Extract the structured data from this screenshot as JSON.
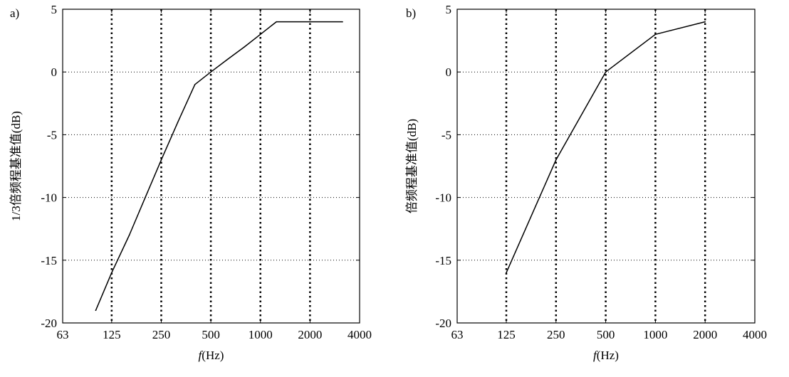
{
  "chart_data": [
    {
      "panel_label": "a)",
      "type": "line",
      "xlabel_italic": "f",
      "xlabel_rest": "(Hz)",
      "ylabel": "1/3倍频程基准值(dB)",
      "x_scale": "log2",
      "xlim": [
        63,
        4000
      ],
      "ylim": [
        -20,
        5
      ],
      "x_ticks": [
        63,
        125,
        250,
        500,
        1000,
        2000,
        4000
      ],
      "x_tick_labels": [
        "63",
        "125",
        "250",
        "500",
        "1000",
        "2000",
        "4000"
      ],
      "y_ticks": [
        5,
        0,
        -5,
        -10,
        -15,
        -20
      ],
      "y_tick_labels": [
        "5",
        "0",
        "-5",
        "-10",
        "-15",
        "-20"
      ],
      "grid": true,
      "series": [
        {
          "x": [
            100,
            125,
            160,
            200,
            250,
            315,
            400,
            500,
            630,
            800,
            1000,
            1250,
            3150
          ],
          "y": [
            -19,
            -16,
            -13,
            -10,
            -7,
            -4,
            -1,
            0,
            1,
            2,
            3,
            4,
            4
          ]
        }
      ]
    },
    {
      "panel_label": "b)",
      "type": "line",
      "xlabel_italic": "f",
      "xlabel_rest": "(Hz)",
      "ylabel": "倍频程基准值(dB)",
      "x_scale": "log2",
      "xlim": [
        63,
        4000
      ],
      "ylim": [
        -20,
        5
      ],
      "x_ticks": [
        63,
        125,
        250,
        500,
        1000,
        2000,
        4000
      ],
      "x_tick_labels": [
        "63",
        "125",
        "250",
        "500",
        "1000",
        "2000",
        "4000"
      ],
      "y_ticks": [
        5,
        0,
        -5,
        -10,
        -15,
        -20
      ],
      "y_tick_labels": [
        "5",
        "0",
        "-5",
        "-10",
        "-15",
        "-20"
      ],
      "grid": true,
      "series": [
        {
          "x": [
            125,
            250,
            500,
            1000,
            2000
          ],
          "y": [
            -16,
            -7,
            0,
            3,
            4
          ]
        }
      ]
    }
  ]
}
